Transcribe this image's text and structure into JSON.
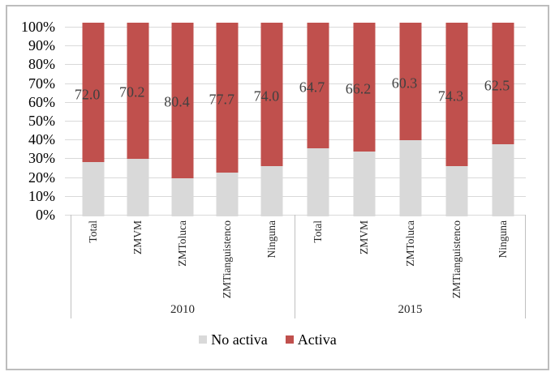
{
  "chart_data": {
    "type": "bar",
    "subtype": "100-percent-stacked-column",
    "title": "",
    "xlabel": "",
    "ylabel": "",
    "ylim": [
      0,
      100
    ],
    "grid": true,
    "legend_position": "bottom",
    "y_ticks": [
      "0%",
      "10%",
      "20%",
      "30%",
      "40%",
      "50%",
      "60%",
      "70%",
      "80%",
      "90%",
      "100%"
    ],
    "series_names": [
      "No activa",
      "Activa"
    ],
    "colors": {
      "no_activa": "#d9d9d9",
      "activa": "#c0504d"
    },
    "groups": [
      {
        "label": "2010",
        "bars": [
          {
            "category": "Total",
            "no_activa": 28.0,
            "activa": 72.0,
            "data_label": "72.0"
          },
          {
            "category": "ZMVM",
            "no_activa": 29.8,
            "activa": 70.2,
            "data_label": "70.2"
          },
          {
            "category": "ZMToluca",
            "no_activa": 19.6,
            "activa": 80.4,
            "data_label": "80.4"
          },
          {
            "category": "ZMTianguistenco",
            "no_activa": 22.3,
            "activa": 77.7,
            "data_label": "77.7"
          },
          {
            "category": "Ninguna",
            "no_activa": 26.0,
            "activa": 74.0,
            "data_label": "74.0"
          }
        ]
      },
      {
        "label": "2015",
        "bars": [
          {
            "category": "Total",
            "no_activa": 35.3,
            "activa": 64.7,
            "data_label": "64.7"
          },
          {
            "category": "ZMVM",
            "no_activa": 33.8,
            "activa": 66.2,
            "data_label": "66.2"
          },
          {
            "category": "ZMToluca",
            "no_activa": 39.7,
            "activa": 60.3,
            "data_label": "60.3"
          },
          {
            "category": "ZMTianguistenco",
            "no_activa": 25.7,
            "activa": 74.3,
            "data_label": "74.3"
          },
          {
            "category": "Ninguna",
            "no_activa": 37.5,
            "activa": 62.5,
            "data_label": "62.5"
          }
        ]
      }
    ],
    "legend": [
      {
        "label": "No activa",
        "color": "#d9d9d9"
      },
      {
        "label": "Activa",
        "color": "#c0504d"
      }
    ]
  }
}
